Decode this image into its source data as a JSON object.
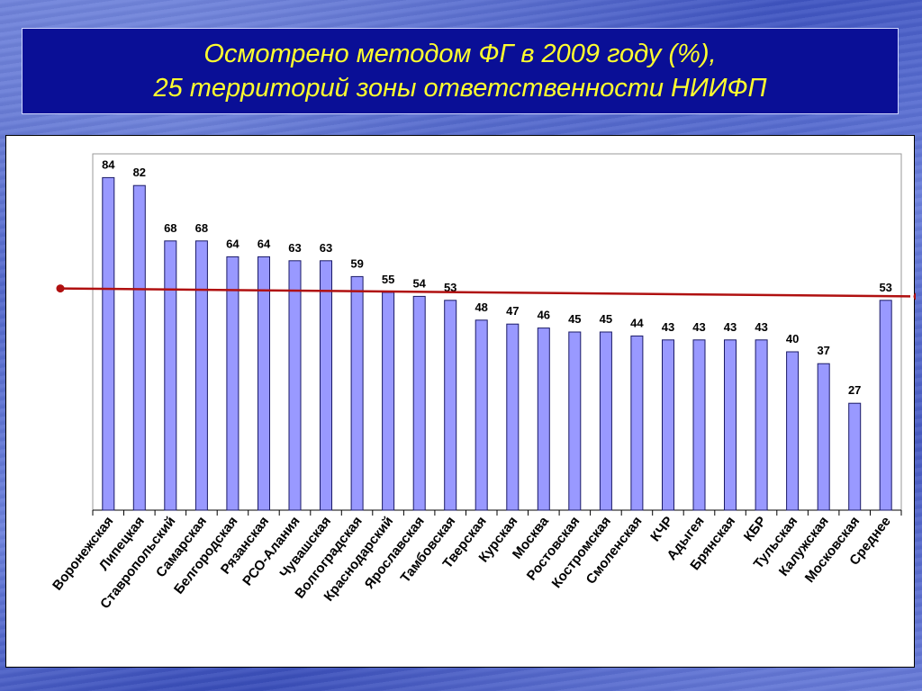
{
  "header": {
    "title_line1": "Осмотрено методом ФГ в 2009 году (%),",
    "title_line2": "25 территорий зоны ответственности НИИФП"
  },
  "colors": {
    "bar_fill": "#9999ff",
    "bar_stroke": "#1a1a66",
    "trend_line": "#b01010",
    "title_bg": "#0a0f96",
    "title_text": "#ffff2e"
  },
  "chart_data": {
    "type": "bar",
    "title": "",
    "xlabel": "",
    "ylabel": "",
    "ylim": [
      0,
      90
    ],
    "grid": false,
    "legend": "none",
    "categories": [
      "Воронежская",
      "Липецкая",
      "Ставропольский",
      "Самарская",
      "Белгородская",
      "Рязанская",
      "РСО-Алания",
      "Чувашская",
      "Волгоградская",
      "Краснодарский",
      "Ярославская",
      "Тамбовская",
      "Тверская",
      "Курская",
      "Москва",
      "Ростовская",
      "Костромская",
      "Смоленская",
      "КЧР",
      "Адыгея",
      "Брянская",
      "КБР",
      "Тульская",
      "Калужская",
      "Московская",
      "Среднее"
    ],
    "values": [
      84,
      82,
      68,
      68,
      64,
      64,
      63,
      63,
      59,
      55,
      54,
      53,
      48,
      47,
      46,
      45,
      45,
      44,
      43,
      43,
      43,
      43,
      40,
      37,
      27,
      53
    ],
    "trend_line": {
      "start": 56,
      "end": 54
    }
  }
}
